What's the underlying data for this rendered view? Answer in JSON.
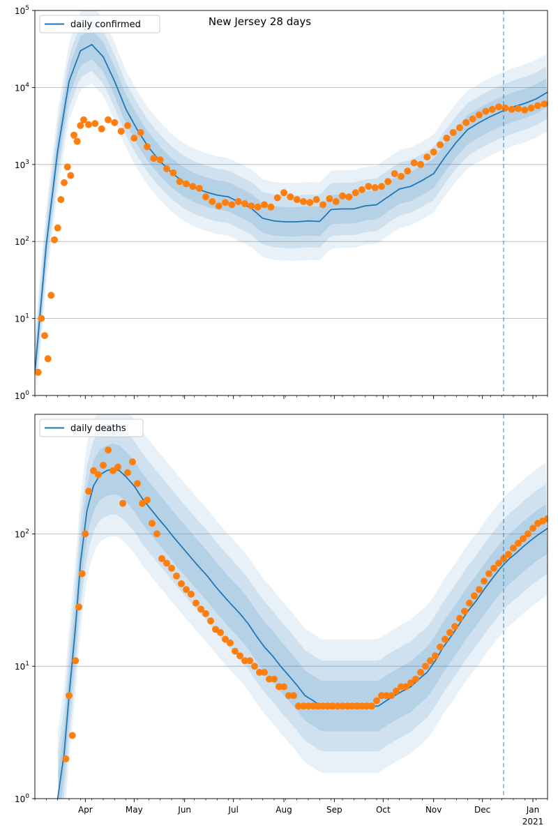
{
  "chart_data": [
    {
      "type": "line",
      "title": "New Jersey 28 days",
      "xlabel": "",
      "ylabel": "",
      "yscale": "log",
      "ylim": [
        1,
        100000
      ],
      "xlim": [
        "2020-03-01",
        "2021-01-10"
      ],
      "grid": "horizontal",
      "legend": "top-left",
      "vline_date": "2020-12-14",
      "x_ticks": [
        {
          "date": "2020-04-01",
          "label": "Apr"
        },
        {
          "date": "2020-05-01",
          "label": "May"
        },
        {
          "date": "2020-06-01",
          "label": "Jun"
        },
        {
          "date": "2020-07-01",
          "label": "Jul"
        },
        {
          "date": "2020-08-01",
          "label": "Aug"
        },
        {
          "date": "2020-09-01",
          "label": "Sep"
        },
        {
          "date": "2020-10-01",
          "label": "Oct"
        },
        {
          "date": "2020-11-01",
          "label": "Nov"
        },
        {
          "date": "2020-12-01",
          "label": "Dec"
        },
        {
          "date": "2021-01-01",
          "label": "Jan",
          "sublabel": "2021"
        }
      ],
      "y_ticks": [
        {
          "value": 1,
          "base": "10",
          "exp": "0"
        },
        {
          "value": 10,
          "base": "10",
          "exp": "1"
        },
        {
          "value": 100,
          "base": "10",
          "exp": "2"
        },
        {
          "value": 1000,
          "base": "10",
          "exp": "3"
        },
        {
          "value": 10000,
          "base": "10",
          "exp": "4"
        },
        {
          "value": 100000,
          "base": "10",
          "exp": "5"
        }
      ],
      "series": [
        {
          "name": "daily confirmed",
          "kind": "line",
          "color": "#1f77b4",
          "x": [
            "2020-03-01",
            "2020-03-08",
            "2020-03-15",
            "2020-03-22",
            "2020-03-29",
            "2020-04-05",
            "2020-04-12",
            "2020-04-19",
            "2020-04-26",
            "2020-05-03",
            "2020-05-10",
            "2020-05-17",
            "2020-05-24",
            "2020-05-31",
            "2020-06-07",
            "2020-06-14",
            "2020-06-21",
            "2020-06-28",
            "2020-07-05",
            "2020-07-12",
            "2020-07-19",
            "2020-07-26",
            "2020-08-02",
            "2020-08-09",
            "2020-08-16",
            "2020-08-23",
            "2020-08-30",
            "2020-09-06",
            "2020-09-13",
            "2020-09-20",
            "2020-09-27",
            "2020-10-04",
            "2020-10-11",
            "2020-10-18",
            "2020-10-25",
            "2020-11-01",
            "2020-11-08",
            "2020-11-15",
            "2020-11-22",
            "2020-11-29",
            "2020-12-06",
            "2020-12-13",
            "2020-12-20",
            "2020-12-27",
            "2021-01-03",
            "2021-01-10"
          ],
          "y": [
            2,
            90,
            1500,
            12000,
            30000,
            36000,
            25000,
            12000,
            5200,
            2800,
            1650,
            1100,
            780,
            600,
            500,
            440,
            400,
            380,
            320,
            270,
            200,
            185,
            180,
            180,
            185,
            182,
            260,
            265,
            265,
            290,
            300,
            380,
            480,
            520,
            620,
            760,
            1250,
            1950,
            2850,
            3500,
            4200,
            4900,
            5600,
            6200,
            7100,
            8700
          ]
        },
        {
          "name": "",
          "kind": "scatter",
          "color": "#ff7f0e",
          "x": [
            "2020-03-03",
            "2020-03-05",
            "2020-03-07",
            "2020-03-09",
            "2020-03-11",
            "2020-03-13",
            "2020-03-15",
            "2020-03-17",
            "2020-03-19",
            "2020-03-21",
            "2020-03-23",
            "2020-03-25",
            "2020-03-27",
            "2020-03-29",
            "2020-03-31",
            "2020-04-03",
            "2020-04-07",
            "2020-04-11",
            "2020-04-15",
            "2020-04-19",
            "2020-04-23",
            "2020-04-27",
            "2020-05-01",
            "2020-05-05",
            "2020-05-09",
            "2020-05-13",
            "2020-05-17",
            "2020-05-21",
            "2020-05-25",
            "2020-05-29",
            "2020-06-02",
            "2020-06-06",
            "2020-06-10",
            "2020-06-14",
            "2020-06-18",
            "2020-06-22",
            "2020-06-26",
            "2020-06-30",
            "2020-07-04",
            "2020-07-08",
            "2020-07-12",
            "2020-07-16",
            "2020-07-20",
            "2020-07-24",
            "2020-07-28",
            "2020-08-01",
            "2020-08-05",
            "2020-08-09",
            "2020-08-13",
            "2020-08-17",
            "2020-08-21",
            "2020-08-25",
            "2020-08-29",
            "2020-09-02",
            "2020-09-06",
            "2020-09-10",
            "2020-09-14",
            "2020-09-18",
            "2020-09-22",
            "2020-09-26",
            "2020-09-30",
            "2020-10-04",
            "2020-10-08",
            "2020-10-12",
            "2020-10-16",
            "2020-10-20",
            "2020-10-24",
            "2020-10-28",
            "2020-11-01",
            "2020-11-05",
            "2020-11-09",
            "2020-11-13",
            "2020-11-17",
            "2020-11-21",
            "2020-11-25",
            "2020-11-29",
            "2020-12-03",
            "2020-12-07",
            "2020-12-11",
            "2020-12-15",
            "2020-12-19",
            "2020-12-23",
            "2020-12-27",
            "2020-12-31",
            "2021-01-04",
            "2021-01-08"
          ],
          "y": [
            2,
            10,
            6,
            3,
            20,
            105,
            150,
            350,
            580,
            930,
            720,
            2400,
            2000,
            3200,
            3800,
            3300,
            3400,
            2900,
            3800,
            3500,
            2700,
            3200,
            2200,
            2600,
            1700,
            1200,
            1150,
            880,
            780,
            600,
            560,
            520,
            490,
            380,
            330,
            290,
            320,
            300,
            330,
            310,
            290,
            280,
            300,
            280,
            370,
            430,
            380,
            350,
            330,
            320,
            350,
            300,
            360,
            330,
            390,
            380,
            430,
            470,
            520,
            500,
            520,
            600,
            760,
            700,
            820,
            1050,
            1000,
            1250,
            1450,
            1800,
            2200,
            2600,
            3000,
            3500,
            3900,
            4400,
            4900,
            5200,
            5600,
            5400,
            5200,
            5300,
            5100,
            5400,
            5800,
            6100
          ]
        }
      ]
    },
    {
      "type": "line",
      "title": "",
      "xlabel": "",
      "ylabel": "",
      "yscale": "log",
      "ylim": [
        1,
        800
      ],
      "xlim": [
        "2020-03-01",
        "2021-01-10"
      ],
      "grid": "horizontal",
      "legend": "top-left",
      "vline_date": "2020-12-14",
      "x_ticks": [
        {
          "date": "2020-04-01",
          "label": "Apr"
        },
        {
          "date": "2020-05-01",
          "label": "May"
        },
        {
          "date": "2020-06-01",
          "label": "Jun"
        },
        {
          "date": "2020-07-01",
          "label": "Jul"
        },
        {
          "date": "2020-08-01",
          "label": "Aug"
        },
        {
          "date": "2020-09-01",
          "label": "Sep"
        },
        {
          "date": "2020-10-01",
          "label": "Oct"
        },
        {
          "date": "2020-11-01",
          "label": "Nov"
        },
        {
          "date": "2020-12-01",
          "label": "Dec"
        },
        {
          "date": "2021-01-01",
          "label": "Jan",
          "sublabel": "2021"
        }
      ],
      "y_ticks": [
        {
          "value": 1,
          "base": "10",
          "exp": "0"
        },
        {
          "value": 10,
          "base": "10",
          "exp": "1"
        },
        {
          "value": 100,
          "base": "10",
          "exp": "2"
        }
      ],
      "series": [
        {
          "name": "daily deaths",
          "kind": "line",
          "color": "#1f77b4",
          "x": [
            "2020-03-15",
            "2020-03-19",
            "2020-03-22",
            "2020-03-26",
            "2020-03-29",
            "2020-04-02",
            "2020-04-06",
            "2020-04-10",
            "2020-04-14",
            "2020-04-18",
            "2020-04-22",
            "2020-04-26",
            "2020-05-01",
            "2020-05-06",
            "2020-05-11",
            "2020-05-16",
            "2020-05-21",
            "2020-05-26",
            "2020-05-31",
            "2020-06-05",
            "2020-06-10",
            "2020-06-15",
            "2020-06-20",
            "2020-06-25",
            "2020-06-30",
            "2020-07-05",
            "2020-07-10",
            "2020-07-15",
            "2020-07-20",
            "2020-07-25",
            "2020-07-30",
            "2020-08-04",
            "2020-08-09",
            "2020-08-14",
            "2020-08-19",
            "2020-08-24",
            "2020-08-29",
            "2020-09-03",
            "2020-09-08",
            "2020-09-13",
            "2020-09-18",
            "2020-09-23",
            "2020-09-28",
            "2020-10-03",
            "2020-10-08",
            "2020-10-13",
            "2020-10-18",
            "2020-10-23",
            "2020-10-28",
            "2020-11-02",
            "2020-11-07",
            "2020-11-12",
            "2020-11-17",
            "2020-11-22",
            "2020-11-27",
            "2020-12-02",
            "2020-12-07",
            "2020-12-12",
            "2020-12-17",
            "2020-12-22",
            "2020-12-27",
            "2021-01-01",
            "2021-01-06",
            "2021-01-10"
          ],
          "y": [
            1,
            2.2,
            6,
            20,
            60,
            150,
            230,
            280,
            300,
            310,
            300,
            270,
            230,
            185,
            155,
            130,
            110,
            92,
            78,
            66,
            56,
            48,
            40,
            34,
            29,
            25,
            21,
            17,
            14,
            12,
            10,
            8.5,
            7.2,
            6,
            5.5,
            5,
            5,
            5,
            5,
            5,
            5,
            5,
            5,
            5.5,
            6,
            6.5,
            7,
            8,
            9,
            11,
            14,
            17,
            21,
            26,
            31,
            38,
            46,
            55,
            64,
            72,
            82,
            92,
            102,
            110
          ]
        },
        {
          "name": "",
          "kind": "scatter",
          "color": "#ff7f0e",
          "x": [
            "2020-03-20",
            "2020-03-22",
            "2020-03-24",
            "2020-03-26",
            "2020-03-28",
            "2020-03-30",
            "2020-04-01",
            "2020-04-03",
            "2020-04-06",
            "2020-04-09",
            "2020-04-12",
            "2020-04-15",
            "2020-04-18",
            "2020-04-21",
            "2020-04-24",
            "2020-04-27",
            "2020-04-30",
            "2020-05-03",
            "2020-05-06",
            "2020-05-09",
            "2020-05-12",
            "2020-05-15",
            "2020-05-18",
            "2020-05-21",
            "2020-05-24",
            "2020-05-27",
            "2020-05-30",
            "2020-06-02",
            "2020-06-05",
            "2020-06-08",
            "2020-06-11",
            "2020-06-14",
            "2020-06-17",
            "2020-06-20",
            "2020-06-23",
            "2020-06-26",
            "2020-06-29",
            "2020-07-02",
            "2020-07-05",
            "2020-07-08",
            "2020-07-11",
            "2020-07-14",
            "2020-07-17",
            "2020-07-20",
            "2020-07-23",
            "2020-07-26",
            "2020-07-29",
            "2020-08-01",
            "2020-08-04",
            "2020-08-07",
            "2020-08-10",
            "2020-08-13",
            "2020-08-16",
            "2020-08-19",
            "2020-08-22",
            "2020-08-25",
            "2020-08-28",
            "2020-08-31",
            "2020-09-03",
            "2020-09-06",
            "2020-09-09",
            "2020-09-12",
            "2020-09-15",
            "2020-09-18",
            "2020-09-21",
            "2020-09-24",
            "2020-09-27",
            "2020-09-30",
            "2020-10-03",
            "2020-10-06",
            "2020-10-09",
            "2020-10-12",
            "2020-10-15",
            "2020-10-18",
            "2020-10-21",
            "2020-10-24",
            "2020-10-27",
            "2020-10-30",
            "2020-11-02",
            "2020-11-05",
            "2020-11-08",
            "2020-11-11",
            "2020-11-14",
            "2020-11-17",
            "2020-11-20",
            "2020-11-23",
            "2020-11-26",
            "2020-11-29",
            "2020-12-02",
            "2020-12-05",
            "2020-12-08",
            "2020-12-11",
            "2020-12-14",
            "2020-12-17",
            "2020-12-20",
            "2020-12-23",
            "2020-12-26",
            "2020-12-29",
            "2021-01-01",
            "2021-01-04",
            "2021-01-07",
            "2021-01-10"
          ],
          "y": [
            2,
            6,
            3,
            11,
            28,
            50,
            100,
            210,
            300,
            280,
            330,
            430,
            300,
            320,
            170,
            290,
            350,
            240,
            170,
            180,
            120,
            100,
            65,
            60,
            55,
            48,
            42,
            38,
            35,
            30,
            27,
            25,
            22,
            19,
            18,
            16,
            15,
            13,
            12,
            11,
            11,
            10,
            9,
            9,
            8,
            8,
            7,
            7,
            6,
            6,
            5,
            5,
            5,
            5,
            5,
            5,
            5,
            5,
            5,
            5,
            5,
            5,
            5,
            5,
            5,
            5,
            5.5,
            6,
            6,
            6,
            6.5,
            7,
            7,
            7.5,
            8,
            9,
            10,
            11,
            12,
            14,
            16,
            18,
            20,
            23,
            26,
            30,
            34,
            38,
            44,
            50,
            55,
            60,
            65,
            70,
            78,
            85,
            92,
            100,
            110,
            120,
            125,
            130
          ]
        }
      ]
    }
  ]
}
